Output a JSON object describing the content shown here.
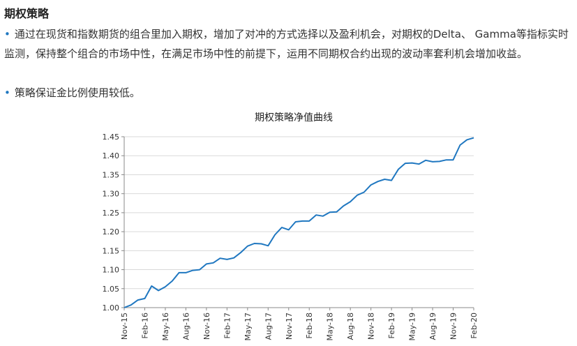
{
  "section": {
    "heading": "期权策略",
    "bullets": [
      "通过在现货和指数期货的组合里加入期权，增加了对冲的方式选择以及盈利机会，对期权的Delta、 Gamma等指标实时监测，保持整个组合的市场中性，在满足市场中性的前提下，运用不同期权合约出现的波动率套利机会增加收益。",
      "策略保证金比例使用较低。"
    ]
  },
  "chart_data": {
    "type": "line",
    "title": "期权策略净值曲线",
    "xlabel": "",
    "ylabel": "",
    "ylim": [
      1.0,
      1.45
    ],
    "yticks": [
      "1.00",
      "1.05",
      "1.10",
      "1.15",
      "1.20",
      "1.25",
      "1.30",
      "1.35",
      "1.40",
      "1.45"
    ],
    "xtick_labels": [
      "Nov-15",
      "Feb-16",
      "May-16",
      "Aug-16",
      "Nov-16",
      "Feb-17",
      "May-17",
      "Aug-17",
      "Nov-17",
      "Feb-18",
      "May-18",
      "Aug-18",
      "Nov-18",
      "Feb-19",
      "May-19",
      "Aug-19",
      "Nov-19",
      "Feb-20"
    ],
    "grid": true,
    "line_color": "#1f77c0",
    "series": [
      {
        "values": [
          1.0,
          1.007,
          1.02,
          1.024,
          1.057,
          1.045,
          1.055,
          1.07,
          1.092,
          1.092,
          1.098,
          1.1,
          1.115,
          1.118,
          1.13,
          1.127,
          1.131,
          1.145,
          1.162,
          1.169,
          1.168,
          1.163,
          1.192,
          1.211,
          1.205,
          1.226,
          1.228,
          1.228,
          1.244,
          1.241,
          1.251,
          1.252,
          1.268,
          1.279,
          1.296,
          1.304,
          1.323,
          1.332,
          1.338,
          1.335,
          1.364,
          1.38,
          1.381,
          1.378,
          1.388,
          1.384,
          1.385,
          1.389,
          1.389,
          1.428,
          1.442,
          1.447
        ]
      }
    ]
  }
}
